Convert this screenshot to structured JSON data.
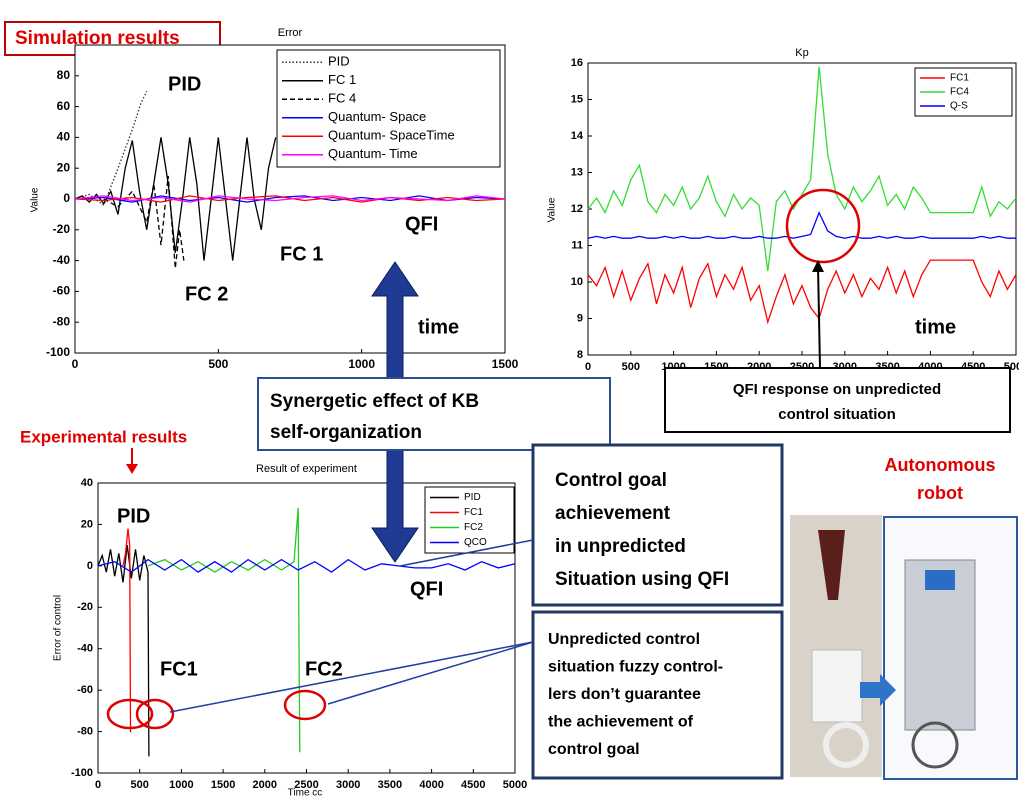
{
  "chart_data": [
    {
      "type": "line",
      "title": "Error",
      "ylabel": "Value",
      "xlim": [
        0,
        1500
      ],
      "ylim": [
        -100,
        100
      ],
      "xticks": [
        0,
        500,
        1000,
        1500
      ],
      "yticks": [
        -100,
        -80,
        -60,
        -40,
        -20,
        0,
        20,
        40,
        60,
        80
      ],
      "series": [
        {
          "name": "PID",
          "color": "#333333",
          "style": "dotted",
          "x": [
            0,
            50,
            100,
            150,
            200,
            230,
            250
          ],
          "values": [
            0,
            3,
            -4,
            20,
            45,
            62,
            70
          ]
        },
        {
          "name": "FC 1",
          "color": "#000000",
          "style": "solid",
          "x": [
            0,
            25,
            50,
            75,
            100,
            125,
            150,
            175,
            200,
            225,
            250,
            275,
            300,
            325,
            350,
            375,
            400,
            425,
            450,
            475,
            500,
            525,
            550,
            575,
            600,
            625,
            650,
            675,
            700
          ],
          "values": [
            0,
            2,
            -2,
            3,
            -3,
            5,
            -10,
            20,
            38,
            5,
            -20,
            10,
            40,
            10,
            -35,
            0,
            40,
            10,
            -40,
            0,
            40,
            0,
            -40,
            0,
            40,
            0,
            -20,
            20,
            40
          ]
        },
        {
          "name": "FC 4",
          "color": "#000000",
          "style": "dashed",
          "x": [
            100,
            150,
            200,
            250,
            275,
            300,
            325,
            350,
            365,
            380
          ],
          "values": [
            0,
            -5,
            5,
            -15,
            10,
            -30,
            15,
            -45,
            -20,
            -40
          ]
        },
        {
          "name": "Quantum- Space",
          "color": "#0000ff",
          "style": "solid",
          "x": [
            0,
            100,
            200,
            300,
            400,
            500,
            600,
            700,
            800,
            900,
            1000,
            1100,
            1200,
            1300,
            1400,
            1500
          ],
          "values": [
            0,
            1,
            -2,
            2,
            -1,
            1,
            -2,
            1,
            2,
            -1,
            1,
            -1,
            2,
            -1,
            1,
            0
          ]
        },
        {
          "name": "Quantum- SpaceTime",
          "color": "#ff0000",
          "style": "solid",
          "x": [
            0,
            100,
            200,
            300,
            400,
            500,
            600,
            700,
            800,
            900,
            1000,
            1100,
            1200,
            1300,
            1400,
            1500
          ],
          "values": [
            0,
            -1,
            1,
            -2,
            2,
            -1,
            1,
            2,
            -1,
            1,
            -2,
            1,
            -1,
            1,
            -1,
            0
          ]
        },
        {
          "name": "Quantum- Time",
          "color": "#ff00ff",
          "style": "solid",
          "x": [
            0,
            100,
            200,
            300,
            400,
            500,
            600,
            700,
            800,
            900,
            1000,
            1100,
            1200,
            1300,
            1400,
            1500
          ],
          "values": [
            0,
            2,
            -1,
            1,
            -2,
            2,
            0,
            -1,
            1,
            2,
            -1,
            1,
            0,
            -1,
            2,
            0
          ]
        }
      ],
      "annotations": [
        "PID",
        "FC 1",
        "FC 2",
        "QFI",
        "time"
      ]
    },
    {
      "type": "line",
      "title": "Kp",
      "ylabel": "Value",
      "xlim": [
        0,
        5000
      ],
      "ylim": [
        8,
        16
      ],
      "xticks": [
        0,
        500,
        1000,
        1500,
        2000,
        2500,
        3000,
        3500,
        4000,
        4500,
        5000
      ],
      "yticks": [
        8,
        9,
        10,
        11,
        12,
        13,
        14,
        15,
        16
      ],
      "x": [
        0,
        100,
        200,
        300,
        400,
        500,
        600,
        700,
        800,
        900,
        1000,
        1100,
        1200,
        1300,
        1400,
        1500,
        1600,
        1700,
        1800,
        1900,
        2000,
        2100,
        2200,
        2300,
        2400,
        2500,
        2600,
        2700,
        2800,
        2900,
        3000,
        3100,
        3200,
        3300,
        3400,
        3500,
        3600,
        3700,
        3800,
        3900,
        4000,
        4100,
        4200,
        4300,
        4400,
        4500,
        4600,
        4700,
        4800,
        4900,
        5000
      ],
      "series": [
        {
          "name": "FC1",
          "color": "#ff0000",
          "style": "solid",
          "values": [
            10.2,
            9.9,
            10.4,
            9.6,
            10.3,
            9.5,
            10.1,
            10.5,
            9.4,
            10.2,
            9.7,
            10.4,
            9.3,
            10.1,
            10.5,
            9.6,
            10.2,
            9.8,
            10.4,
            9.5,
            9.9,
            8.9,
            9.6,
            10.2,
            9.4,
            9.9,
            9.3,
            9.0,
            9.8,
            10.3,
            9.7,
            10.2,
            9.6,
            10.1,
            9.8,
            10.4,
            9.7,
            10.3,
            9.6,
            10.2,
            10.6,
            10.6,
            10.6,
            10.6,
            10.6,
            10.6,
            10.0,
            9.6,
            10.3,
            9.8,
            10.2
          ]
        },
        {
          "name": "FC4",
          "color": "#33dd33",
          "style": "solid",
          "values": [
            12.0,
            12.3,
            11.9,
            12.5,
            12.1,
            12.8,
            13.2,
            12.2,
            11.9,
            12.4,
            12.1,
            12.6,
            12.0,
            12.3,
            12.9,
            12.2,
            11.8,
            12.4,
            12.0,
            12.3,
            12.1,
            10.3,
            12.2,
            12.5,
            12.0,
            12.4,
            12.8,
            15.9,
            13.5,
            12.4,
            12.0,
            12.6,
            12.2,
            12.5,
            12.9,
            12.1,
            12.4,
            12.0,
            12.6,
            12.3,
            11.9,
            11.9,
            11.9,
            11.9,
            11.9,
            11.9,
            12.6,
            11.8,
            12.2,
            12.0,
            12.3
          ]
        },
        {
          "name": "Q-S",
          "color": "#0000ff",
          "style": "solid",
          "values": [
            11.2,
            11.25,
            11.2,
            11.25,
            11.2,
            11.2,
            11.25,
            11.2,
            11.2,
            11.25,
            11.2,
            11.25,
            11.2,
            11.2,
            11.25,
            11.2,
            11.2,
            11.25,
            11.2,
            11.2,
            11.25,
            11.2,
            11.2,
            11.25,
            11.2,
            11.25,
            11.3,
            11.9,
            11.4,
            11.25,
            11.2,
            11.25,
            11.2,
            11.2,
            11.25,
            11.2,
            11.25,
            11.2,
            11.2,
            11.25,
            11.2,
            11.2,
            11.2,
            11.2,
            11.2,
            11.2,
            11.25,
            11.2,
            11.25,
            11.2,
            11.2
          ]
        }
      ],
      "annotations": [
        "time"
      ]
    },
    {
      "type": "line",
      "title": "Result of experiment",
      "ylabel": "Error of control",
      "xlabel": "Time cc",
      "xlim": [
        0,
        5000
      ],
      "ylim": [
        -100,
        40
      ],
      "xticks": [
        0,
        500,
        1000,
        1500,
        2000,
        2500,
        3000,
        3500,
        4000,
        4500,
        5000
      ],
      "yticks": [
        -100,
        -80,
        -60,
        -40,
        -20,
        0,
        20,
        40
      ],
      "series": [
        {
          "name": "PID",
          "color": "#000000",
          "style": "solid",
          "x": [
            0,
            50,
            100,
            150,
            200,
            250,
            300,
            350,
            400,
            450,
            500,
            550,
            600,
            610
          ],
          "values": [
            0,
            5,
            -3,
            8,
            -5,
            6,
            -8,
            10,
            -6,
            8,
            -7,
            5,
            -3,
            -92
          ]
        },
        {
          "name": "FC1",
          "color": "#ff0000",
          "style": "solid",
          "x": [
            300,
            330,
            360,
            380,
            390,
            400
          ],
          "values": [
            0,
            6,
            18,
            10,
            -80,
            -80
          ]
        },
        {
          "name": "FC2",
          "color": "#22cc22",
          "style": "solid",
          "x": [
            600,
            800,
            1000,
            1200,
            1400,
            1600,
            1800,
            2000,
            2200,
            2350,
            2400,
            2410,
            2420
          ],
          "values": [
            0,
            3,
            -2,
            2,
            -3,
            2,
            -2,
            3,
            -2,
            2,
            28,
            -38,
            -90
          ]
        },
        {
          "name": "QCO",
          "color": "#0000ff",
          "style": "solid",
          "x": [
            0,
            200,
            400,
            600,
            800,
            1000,
            1200,
            1400,
            1600,
            1800,
            2000,
            2200,
            2400,
            2600,
            2800,
            3000,
            3200,
            3400,
            3600,
            3800,
            4000,
            4200,
            4400,
            4600,
            4800,
            5000
          ],
          "values": [
            0,
            2,
            -3,
            3,
            -2,
            3,
            -3,
            2,
            -3,
            3,
            -2,
            3,
            -2,
            2,
            -3,
            3,
            -2,
            1,
            0,
            -1,
            -1,
            1,
            -2,
            2,
            -1,
            1
          ]
        }
      ],
      "annotations": [
        "PID",
        "FC1",
        "FC2",
        "QFI"
      ]
    }
  ],
  "callouts": {
    "simulation": "Simulation results",
    "experimental": "Experimental results",
    "synergy": [
      "Synergetic effect of KB",
      "self-organization"
    ],
    "qfi_response": [
      "QFI response on unpredicted",
      "control situation"
    ],
    "goal": [
      "Control goal",
      "achievement",
      "in unpredicted",
      "Situation using QFI"
    ],
    "unpredicted": [
      "Unpredicted  control",
      "situation fuzzy control-",
      "lers  don’t guarantee",
      "the achievement  of",
      "control goal"
    ],
    "robot": [
      "Autonomous",
      "robot"
    ]
  }
}
